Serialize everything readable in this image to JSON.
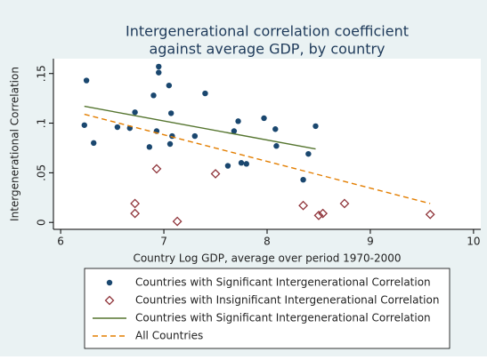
{
  "chart_data": {
    "type": "scatter",
    "title": [
      "Intergenerational correlation coefficient",
      "against average GDP, by country"
    ],
    "x_label": "Country Log GDP, average over period 1970-2000",
    "y_label": "Intergenerational Correlation",
    "xlim": [
      5.93,
      10.07
    ],
    "ylim": [
      -0.007,
      0.165
    ],
    "xticks": [
      6,
      7,
      8,
      9,
      10
    ],
    "yticks": [
      0,
      {
        "value": 0.05,
        "label": ".05"
      },
      {
        "value": 0.1,
        "label": ".1"
      },
      {
        "value": 0.15,
        "label": ".15"
      }
    ],
    "series": [
      {
        "name": "Countries with Significant Intergenerational Correlation",
        "kind": "dot",
        "color": "#1a476f",
        "x": [
          6.23,
          6.25,
          6.32,
          6.55,
          6.67,
          6.72,
          6.86,
          6.9,
          6.93,
          6.95,
          6.95,
          7.05,
          7.06,
          7.07,
          7.08,
          7.3,
          7.4,
          7.62,
          7.68,
          7.72,
          7.75,
          7.8,
          7.97,
          8.08,
          8.09,
          8.35,
          8.4,
          8.47
        ],
        "values": [
          0.098,
          0.143,
          0.08,
          0.096,
          0.095,
          0.111,
          0.076,
          0.128,
          0.092,
          0.157,
          0.151,
          0.138,
          0.079,
          0.11,
          0.087,
          0.087,
          0.13,
          0.057,
          0.092,
          0.102,
          0.06,
          0.059,
          0.105,
          0.094,
          0.077,
          0.043,
          0.069,
          0.097
        ]
      },
      {
        "name": "Countries with Insignificant Intergenerational Correlation",
        "kind": "diamond",
        "color": "#90353b",
        "x": [
          6.72,
          6.72,
          6.93,
          7.13,
          7.5,
          8.35,
          8.5,
          8.54,
          8.75,
          9.58
        ],
        "values": [
          0.019,
          0.009,
          0.054,
          0.001,
          0.049,
          0.017,
          0.007,
          0.009,
          0.019,
          0.008
        ]
      },
      {
        "name": "Countries with Significant Intergenerational Correlation",
        "kind": "line",
        "color": "#55752f",
        "x": [
          6.23,
          8.47
        ],
        "values": [
          0.117,
          0.074
        ]
      },
      {
        "name": "All Countries",
        "kind": "dash",
        "color": "#e37e00",
        "x": [
          6.23,
          9.58
        ],
        "values": [
          0.109,
          0.019
        ]
      }
    ]
  }
}
